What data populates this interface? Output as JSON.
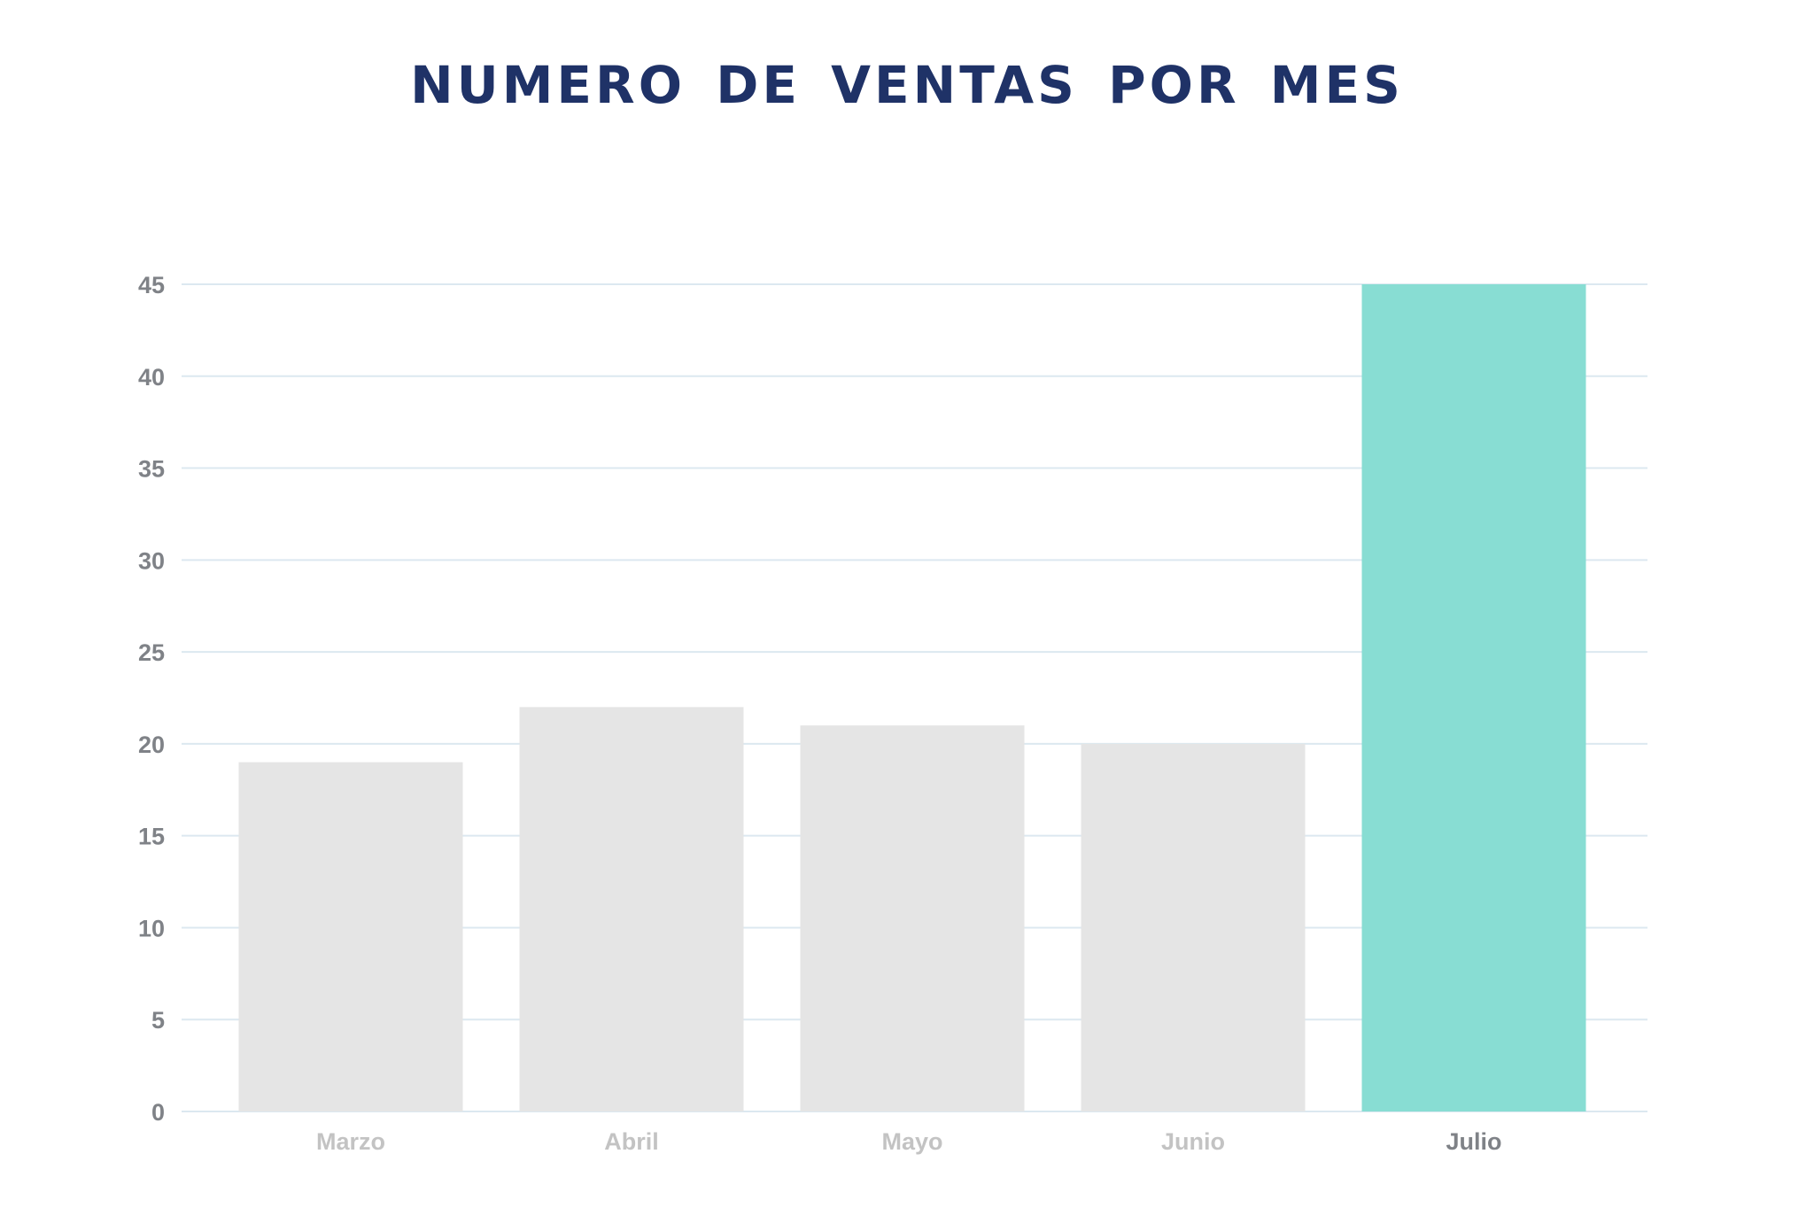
{
  "chart_data": {
    "type": "bar",
    "title": "NUMERO DE VENTAS POR MES",
    "categories": [
      "Marzo",
      "Abril",
      "Mayo",
      "Junio",
      "Julio"
    ],
    "values": [
      19,
      22,
      21,
      20,
      45
    ],
    "highlight_category": "Julio",
    "ylim": [
      0,
      45
    ],
    "yticks": [
      0,
      5,
      10,
      15,
      20,
      25,
      30,
      35,
      40,
      45
    ],
    "grid": true,
    "legend": "none",
    "colors": {
      "bar": "#e5e5e5",
      "highlight_bar": "#88ddd3",
      "gridline": "#dce8f0",
      "title": "#1f3267",
      "tick_label": "#7f8287",
      "category_label": "#c3c3c3",
      "highlight_category_label": "#7f8287"
    }
  }
}
